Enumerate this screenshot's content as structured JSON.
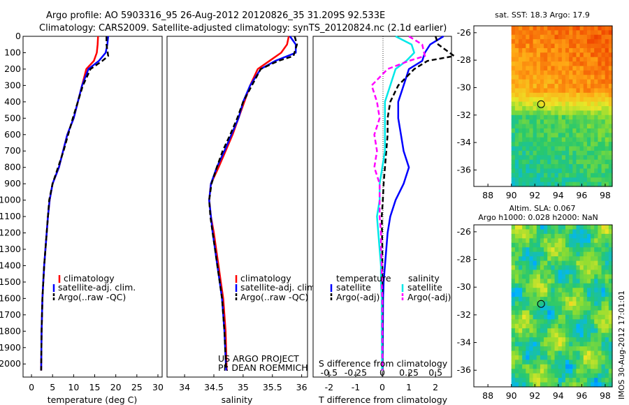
{
  "header": {
    "line1": "Argo profile: AO 5903316_95 26-Aug-2012 20120826_35 31.209S 92.533E",
    "line2": "Climatology: CARS2009. Satellite-adjusted climatology: synTS_20120824.nc (2.1d earlier)"
  },
  "colors": {
    "climatology": "#ff0000",
    "satellite": "#0000ff",
    "argo": "#000000",
    "salinity_sat": "#00e8e8",
    "salinity_argo": "#ff00ff"
  },
  "chart_data": [
    {
      "type": "line",
      "id": "temperature",
      "xlabel": "temperature (deg C)",
      "ylabel": "",
      "xlim": [
        -2,
        31
      ],
      "ylim": [
        2080,
        0
      ],
      "xticks": [
        0,
        5,
        10,
        15,
        20,
        25,
        30
      ],
      "yticks": [
        0,
        100,
        200,
        300,
        400,
        500,
        600,
        700,
        800,
        900,
        1000,
        1100,
        1200,
        1300,
        1400,
        1500,
        1600,
        1700,
        1800,
        1900,
        2000
      ],
      "legend": [
        "climatology",
        "satellite-adj. clim.",
        "Argo(..raw -QC)"
      ],
      "series": [
        {
          "name": "climatology",
          "style": "solid",
          "color": "#ff0000",
          "x": [
            15.8,
            15.7,
            15.5,
            14.8,
            13.0,
            12.0,
            11.0,
            10.0,
            8.5,
            7.5,
            6.5,
            5.0,
            4.3,
            3.9,
            3.6,
            3.3,
            3.0,
            2.8,
            2.6,
            2.4,
            2.3
          ],
          "y": [
            0,
            50,
            100,
            150,
            200,
            300,
            400,
            500,
            600,
            700,
            800,
            900,
            1000,
            1100,
            1200,
            1300,
            1400,
            1500,
            1600,
            1800,
            2040
          ]
        },
        {
          "name": "satellite-adj. clim.",
          "style": "solid",
          "color": "#0000ff",
          "x": [
            18.2,
            18.0,
            17.6,
            16.0,
            13.5,
            12.0,
            11.0,
            10.0,
            8.5,
            7.5,
            6.5,
            5.0,
            4.3,
            3.9,
            3.6,
            3.3,
            3.0,
            2.8,
            2.6,
            2.4,
            2.3
          ],
          "y": [
            0,
            50,
            100,
            150,
            200,
            300,
            400,
            500,
            600,
            700,
            800,
            900,
            1000,
            1100,
            1200,
            1300,
            1400,
            1500,
            1600,
            1800,
            2040
          ]
        },
        {
          "name": "Argo(..raw -QC)",
          "style": "dash",
          "color": "#000000",
          "x": [
            17.8,
            17.8,
            18.2,
            16.8,
            14.0,
            12.2,
            11.0,
            9.8,
            8.7,
            7.6,
            6.3,
            5.0,
            4.2,
            3.9,
            3.6,
            3.3,
            3.0,
            2.8,
            2.6,
            2.4,
            2.3
          ],
          "y": [
            0,
            50,
            120,
            150,
            200,
            300,
            400,
            500,
            600,
            700,
            800,
            900,
            1000,
            1100,
            1200,
            1300,
            1400,
            1500,
            1600,
            1800,
            2040
          ]
        }
      ]
    },
    {
      "type": "line",
      "id": "salinity",
      "xlabel": "salinity",
      "ylabel": "",
      "xlim": [
        33.7,
        36.1
      ],
      "ylim": [
        2080,
        0
      ],
      "xticks": [
        34,
        34.5,
        35,
        35.5,
        36
      ],
      "xticklabels": [
        "34",
        "34.5",
        "35",
        "35.5",
        "36"
      ],
      "legend": [
        "climatology",
        "satellite-adj. clim.",
        "Argo(..raw -QC)"
      ],
      "series": [
        {
          "name": "climatology",
          "style": "solid",
          "color": "#ff0000",
          "x": [
            35.78,
            35.75,
            35.65,
            35.45,
            35.25,
            35.12,
            35.02,
            34.92,
            34.82,
            34.7,
            34.58,
            34.45,
            34.42,
            34.45,
            34.5,
            34.54,
            34.58,
            34.62,
            34.66,
            34.7,
            34.72
          ],
          "y": [
            0,
            50,
            100,
            150,
            200,
            300,
            400,
            500,
            600,
            700,
            800,
            900,
            1000,
            1100,
            1200,
            1300,
            1400,
            1500,
            1600,
            1800,
            2040
          ]
        },
        {
          "name": "satellite-adj. clim.",
          "style": "solid",
          "color": "#0000ff",
          "x": [
            35.8,
            35.9,
            35.9,
            35.55,
            35.3,
            35.12,
            35.0,
            34.92,
            34.8,
            34.68,
            34.55,
            34.45,
            34.42,
            34.45,
            34.48,
            34.52,
            34.56,
            34.6,
            34.64,
            34.68,
            34.71
          ],
          "y": [
            0,
            50,
            100,
            150,
            200,
            300,
            400,
            500,
            600,
            700,
            800,
            900,
            1000,
            1100,
            1200,
            1300,
            1400,
            1500,
            1600,
            1800,
            2040
          ]
        },
        {
          "name": "Argo(..raw -QC)",
          "style": "dash",
          "color": "#000000",
          "x": [
            35.88,
            35.92,
            35.86,
            35.6,
            35.3,
            35.15,
            35.0,
            34.9,
            34.78,
            34.65,
            34.55,
            34.46,
            34.42,
            34.44,
            34.48,
            34.52,
            34.56,
            34.6,
            34.64,
            34.68,
            34.71
          ],
          "y": [
            0,
            50,
            120,
            150,
            200,
            300,
            400,
            500,
            600,
            700,
            800,
            900,
            1000,
            1100,
            1200,
            1300,
            1400,
            1500,
            1600,
            1800,
            2040
          ]
        }
      ]
    },
    {
      "type": "line",
      "id": "difference",
      "xlabel": "T difference from climatology",
      "x2label": "S difference from climatology",
      "xlim": [
        -2.6,
        2.6
      ],
      "ylim": [
        2080,
        0
      ],
      "xticks": [
        -2,
        -1,
        0,
        1,
        2
      ],
      "x2ticks": [
        -0.5,
        -0.25,
        0,
        0.25,
        0.5
      ],
      "x2ticklabels": [
        "-0.5",
        "-0.25",
        "0",
        "0.25",
        "0.5"
      ],
      "legend_titles": [
        "temperature",
        "salinity"
      ],
      "legend": [
        "satellite",
        "Argo(-adj)",
        "satellite",
        "Argo(-adj)"
      ],
      "series": [
        {
          "name": "temperature satellite",
          "style": "solid",
          "color": "#0000ff",
          "x": [
            2.3,
            1.8,
            1.6,
            1.5,
            1.0,
            0.8,
            0.6,
            0.6,
            0.7,
            0.8,
            1.0,
            0.8,
            0.5,
            0.3,
            0.2,
            0.15,
            0.1,
            0.05,
            0.03,
            0.02,
            0.01
          ],
          "y": [
            0,
            50,
            100,
            150,
            200,
            300,
            400,
            500,
            600,
            700,
            800,
            900,
            1000,
            1100,
            1200,
            1300,
            1400,
            1500,
            1600,
            1800,
            2040
          ]
        },
        {
          "name": "temperature Argo(-adj)",
          "style": "dash",
          "color": "#000000",
          "x": [
            2.0,
            2.1,
            2.7,
            1.7,
            1.2,
            0.6,
            0.3,
            0.2,
            0.2,
            0.15,
            0.1,
            0.05,
            0.02,
            -0.02,
            -0.01,
            0.0,
            0.0,
            0.0,
            0.0,
            0.0,
            0.0
          ],
          "y": [
            0,
            50,
            120,
            150,
            200,
            300,
            400,
            500,
            600,
            700,
            800,
            900,
            1000,
            1100,
            1200,
            1300,
            1400,
            1500,
            1600,
            1800,
            2040
          ]
        },
        {
          "name": "salinity satellite",
          "style": "solid",
          "color": "#00e8e8",
          "x": [
            0.5,
            1.1,
            1.2,
            0.9,
            0.5,
            0.3,
            0.1,
            0.1,
            0.1,
            0.1,
            0.0,
            -0.1,
            -0.1,
            -0.2,
            -0.15,
            -0.1,
            -0.05,
            -0.05,
            -0.02,
            -0.02,
            -0.01
          ],
          "y": [
            0,
            50,
            100,
            150,
            200,
            300,
            400,
            500,
            600,
            700,
            800,
            900,
            1000,
            1100,
            1200,
            1300,
            1400,
            1500,
            1600,
            1800,
            2040
          ]
        },
        {
          "name": "salinity Argo(-adj)",
          "style": "dash",
          "color": "#ff00ff",
          "x": [
            1.0,
            1.5,
            1.6,
            1.0,
            0.2,
            -0.4,
            -0.2,
            -0.1,
            -0.3,
            -0.2,
            -0.3,
            -0.1,
            -0.1,
            -0.1,
            -0.05,
            -0.05,
            -0.02,
            -0.02,
            0.0,
            0.0,
            0.0
          ],
          "y": [
            0,
            50,
            120,
            150,
            200,
            300,
            400,
            500,
            600,
            700,
            800,
            900,
            1000,
            1100,
            1200,
            1300,
            1400,
            1500,
            1600,
            1800,
            2040
          ]
        }
      ]
    },
    {
      "type": "heatmap",
      "id": "sst_map",
      "title": "sat. SST: 18.3 Argo: 17.9",
      "xlim": [
        86.8,
        98.6
      ],
      "ylim": [
        -37.2,
        -25.5
      ],
      "xticks": [
        88,
        90,
        92,
        94,
        96,
        98
      ],
      "yticks": [
        -26,
        -28,
        -30,
        -32,
        -34,
        -36
      ],
      "data_xlim": [
        90,
        98.6
      ],
      "marker": {
        "lon": 92.533,
        "lat": -31.209
      }
    },
    {
      "type": "heatmap",
      "id": "sla_map",
      "title": "Altim. SLA: 0.067",
      "subtitle": "Argo h1000: 0.028 h2000: NaN",
      "xlim": [
        86.8,
        98.6
      ],
      "ylim": [
        -37.2,
        -25.5
      ],
      "xticks": [
        88,
        90,
        92,
        94,
        96,
        98
      ],
      "yticks": [
        -26,
        -28,
        -30,
        -32,
        -34,
        -36
      ],
      "data_xlim": [
        90,
        98.6
      ],
      "marker": {
        "lon": 92.533,
        "lat": -31.209
      }
    }
  ],
  "credits": {
    "project": "US ARGO PROJECT",
    "pi": "PI: DEAN ROEMMICH",
    "stamp": "IMOS 30-Aug-2012 17:01:01"
  }
}
